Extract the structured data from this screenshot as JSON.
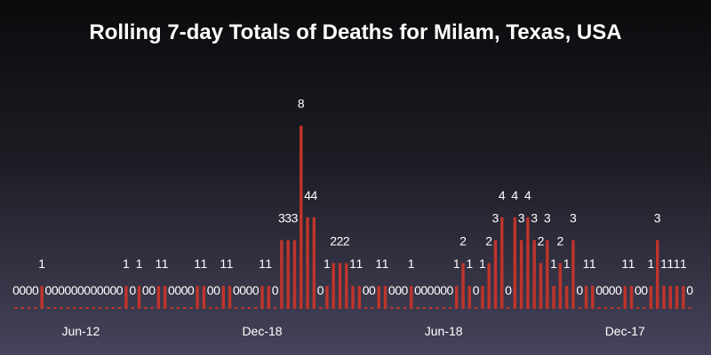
{
  "chart_data": {
    "type": "bar",
    "title": "Rolling 7-day Totals of Deaths for Milam, Texas, USA",
    "xlabel": "",
    "ylabel": "",
    "ylim": [
      0,
      8
    ],
    "grid": false,
    "bar_color": "#c0342b",
    "x_tick_labels": [
      {
        "label": "Jun-12",
        "index": 10
      },
      {
        "label": "Dec-18",
        "index": 38
      },
      {
        "label": "Jun-18",
        "index": 66
      },
      {
        "label": "Dec-17",
        "index": 94
      }
    ],
    "values": [
      0,
      0,
      0,
      0,
      1,
      0,
      0,
      0,
      0,
      0,
      0,
      0,
      0,
      0,
      0,
      0,
      0,
      1,
      0,
      1,
      0,
      0,
      1,
      1,
      0,
      0,
      0,
      0,
      1,
      1,
      0,
      0,
      1,
      1,
      0,
      0,
      0,
      0,
      1,
      1,
      0,
      3,
      3,
      3,
      8,
      4,
      4,
      0,
      1,
      2,
      2,
      2,
      1,
      1,
      0,
      0,
      1,
      1,
      0,
      0,
      0,
      1,
      0,
      0,
      0,
      0,
      0,
      0,
      1,
      2,
      1,
      0,
      1,
      2,
      3,
      4,
      0,
      4,
      3,
      4,
      3,
      2,
      3,
      1,
      2,
      1,
      3,
      0,
      1,
      1,
      0,
      0,
      0,
      0,
      1,
      1,
      0,
      0,
      1,
      3,
      1,
      1,
      1,
      1,
      0
    ]
  }
}
